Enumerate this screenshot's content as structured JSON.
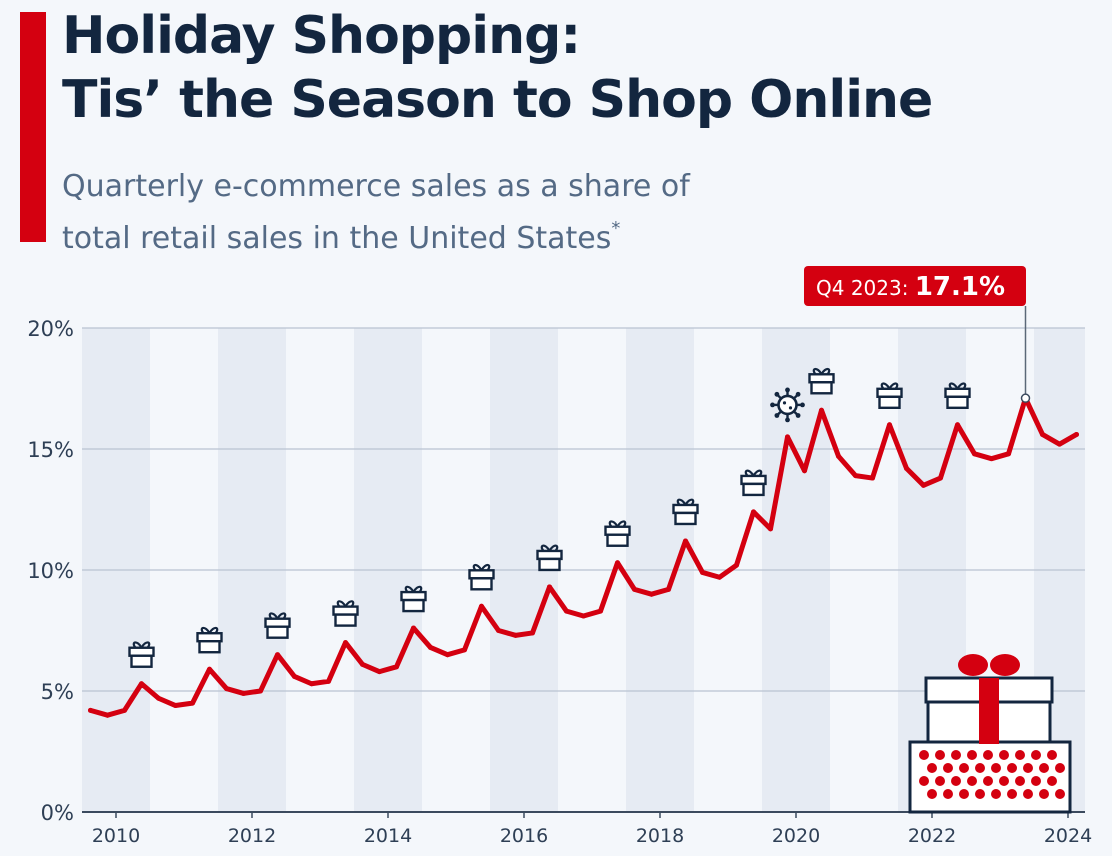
{
  "header": {
    "title_line1": "Holiday Shopping:",
    "title_line2": "Tis’ the Season to Shop Online",
    "subtitle_line1": "Quarterly e-commerce sales as a share of",
    "subtitle_line2": "total retail sales in the United States",
    "subtitle_footnote_mark": "*"
  },
  "colors": {
    "accent": "#d40010",
    "title": "#13263f",
    "line": "#d40010",
    "band": "#e6ebf3",
    "grid": "#b9c3d1",
    "icon": "#13263f"
  },
  "chart_data": {
    "type": "line",
    "title": "",
    "xlabel": "",
    "ylabel": "",
    "y_unit": "%",
    "ylim": [
      0,
      20
    ],
    "y_ticks": [
      0,
      5,
      10,
      15,
      20
    ],
    "y_tick_labels": [
      "0%",
      "5%",
      "10%",
      "15%",
      "20%"
    ],
    "x_tick_labels": [
      "2010",
      "2012",
      "2014",
      "2016",
      "2018",
      "2020",
      "2022",
      "2024"
    ],
    "x_tick_years": [
      2010,
      2012,
      2014,
      2016,
      2018,
      2020,
      2022,
      2024
    ],
    "xlim": [
      2010.0,
      2024.75
    ],
    "grid": true,
    "alternating_year_bands": true,
    "series": [
      {
        "x": [
          "Q1 2010",
          "Q2 2010",
          "Q3 2010",
          "Q4 2010",
          "Q1 2011",
          "Q2 2011",
          "Q3 2011",
          "Q4 2011",
          "Q1 2012",
          "Q2 2012",
          "Q3 2012",
          "Q4 2012",
          "Q1 2013",
          "Q2 2013",
          "Q3 2013",
          "Q4 2013",
          "Q1 2014",
          "Q2 2014",
          "Q3 2014",
          "Q4 2014",
          "Q1 2015",
          "Q2 2015",
          "Q3 2015",
          "Q4 2015",
          "Q1 2016",
          "Q2 2016",
          "Q3 2016",
          "Q4 2016",
          "Q1 2017",
          "Q2 2017",
          "Q3 2017",
          "Q4 2017",
          "Q1 2018",
          "Q2 2018",
          "Q3 2018",
          "Q4 2018",
          "Q1 2019",
          "Q2 2019",
          "Q3 2019",
          "Q4 2019",
          "Q1 2020",
          "Q2 2020",
          "Q3 2020",
          "Q4 2020",
          "Q1 2021",
          "Q2 2021",
          "Q3 2021",
          "Q4 2021",
          "Q1 2022",
          "Q2 2022",
          "Q3 2022",
          "Q4 2022",
          "Q1 2023",
          "Q2 2023",
          "Q3 2023",
          "Q4 2023",
          "Q1 2024",
          "Q2 2024",
          "Q3 2024"
        ],
        "values": [
          4.2,
          4.0,
          4.2,
          5.3,
          4.7,
          4.4,
          4.5,
          5.9,
          5.1,
          4.9,
          5.0,
          6.5,
          5.6,
          5.3,
          5.4,
          7.0,
          6.1,
          5.8,
          6.0,
          7.6,
          6.8,
          6.5,
          6.7,
          8.5,
          7.5,
          7.3,
          7.4,
          9.3,
          8.3,
          8.1,
          8.3,
          10.3,
          9.2,
          9.0,
          9.2,
          11.2,
          9.9,
          9.7,
          10.2,
          12.4,
          11.7,
          15.5,
          14.1,
          16.6,
          14.7,
          13.9,
          13.8,
          16.0,
          14.2,
          13.5,
          13.8,
          16.0,
          14.8,
          14.6,
          14.8,
          17.1,
          15.6,
          15.2,
          15.6
        ]
      }
    ],
    "annotations": [
      {
        "icon": "gift-icon",
        "x": "Q4 2010"
      },
      {
        "icon": "gift-icon",
        "x": "Q4 2011"
      },
      {
        "icon": "gift-icon",
        "x": "Q4 2012"
      },
      {
        "icon": "gift-icon",
        "x": "Q4 2013"
      },
      {
        "icon": "gift-icon",
        "x": "Q4 2014"
      },
      {
        "icon": "gift-icon",
        "x": "Q4 2015"
      },
      {
        "icon": "gift-icon",
        "x": "Q4 2016"
      },
      {
        "icon": "gift-icon",
        "x": "Q4 2017"
      },
      {
        "icon": "gift-icon",
        "x": "Q4 2018"
      },
      {
        "icon": "gift-icon",
        "x": "Q4 2019"
      },
      {
        "icon": "virus-icon",
        "x": "Q2 2020"
      },
      {
        "icon": "gift-icon",
        "x": "Q4 2020"
      },
      {
        "icon": "gift-icon",
        "x": "Q4 2021"
      },
      {
        "icon": "gift-icon",
        "x": "Q4 2022"
      }
    ],
    "callout": {
      "x": "Q4 2023",
      "label": "Q4 2023:",
      "value_text": "17.1%"
    }
  }
}
